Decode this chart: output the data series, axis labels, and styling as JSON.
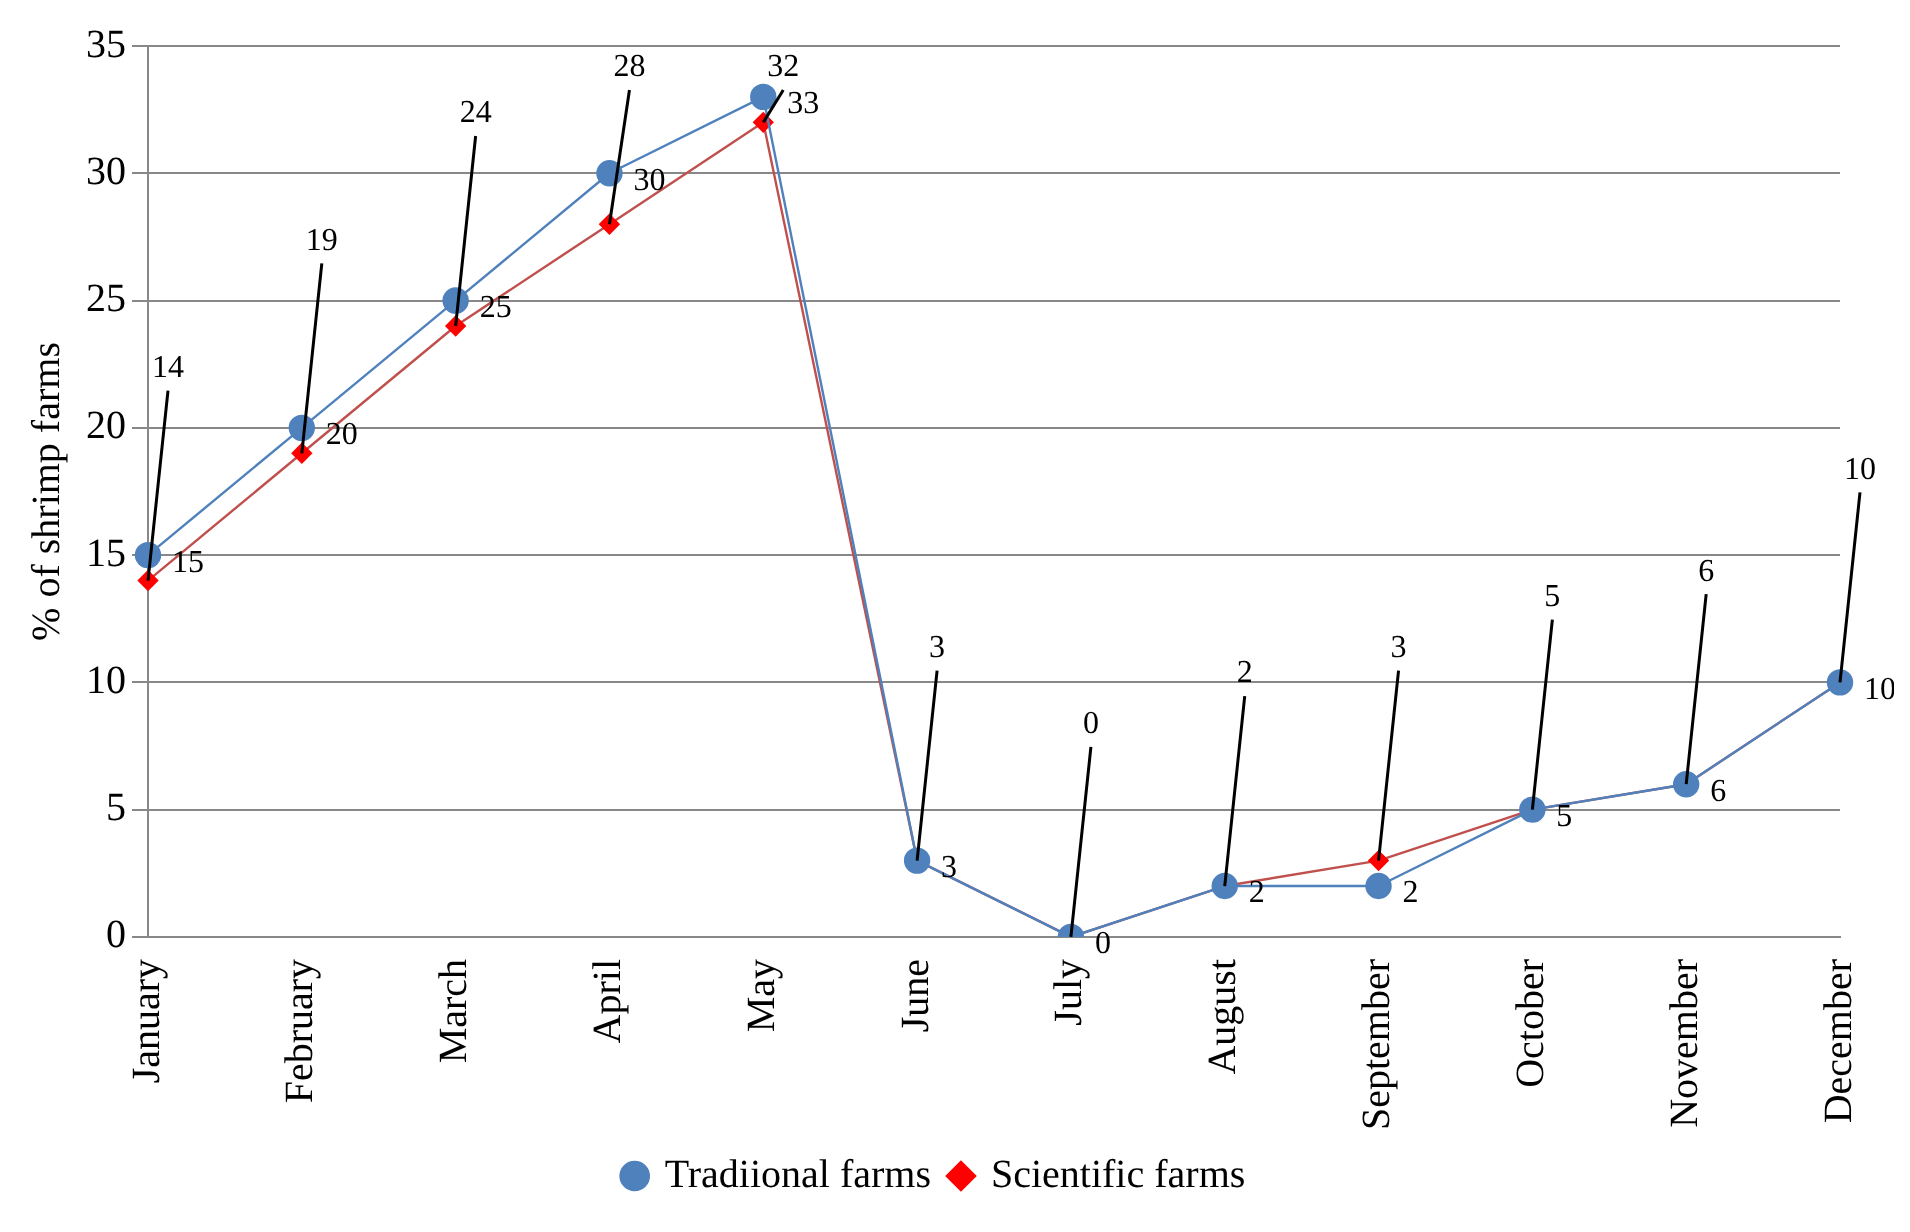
{
  "chart_data": {
    "type": "line",
    "ylabel": "% of shrimp farms",
    "categories": [
      "January",
      "February",
      "March",
      "April",
      "May",
      "June",
      "July",
      "August",
      "September",
      "October",
      "November",
      "December"
    ],
    "series": [
      {
        "name": "Tradiional farms",
        "color": "#4f81bd",
        "marker": "circle",
        "values": [
          15,
          20,
          25,
          30,
          33,
          3,
          0,
          2,
          2,
          5,
          6,
          10
        ],
        "value_labels": [
          "15",
          "20",
          "25",
          "30",
          "33",
          "3",
          "0",
          "2",
          "2",
          "5",
          "6",
          "10"
        ]
      },
      {
        "name": "Scientific farms",
        "color": "#c0504d",
        "marker": "diamond",
        "values": [
          14,
          19,
          24,
          28,
          32,
          3,
          0,
          2,
          3,
          5,
          6,
          10
        ]
      }
    ],
    "annotations": [
      {
        "text": "14",
        "x": "January",
        "y": 14
      },
      {
        "text": "19",
        "x": "February",
        "y": 19
      },
      {
        "text": "24",
        "x": "March",
        "y": 24
      },
      {
        "text": "28",
        "x": "April",
        "y": 28
      },
      {
        "text": "32",
        "x": "May",
        "y": 32
      },
      {
        "text": "3",
        "x": "June",
        "y": 3
      },
      {
        "text": "0",
        "x": "July",
        "y": 0
      },
      {
        "text": "2",
        "x": "August",
        "y": 2
      },
      {
        "text": "3",
        "x": "September",
        "y": 3
      },
      {
        "text": "5",
        "x": "October",
        "y": 5
      },
      {
        "text": "6",
        "x": "November",
        "y": 6
      },
      {
        "text": "10",
        "x": "December",
        "y": 10
      }
    ],
    "ylim": [
      0,
      35
    ],
    "yticks": [
      0,
      5,
      10,
      15,
      20,
      25,
      30,
      35
    ],
    "grid": "y",
    "legend": "bottom"
  }
}
